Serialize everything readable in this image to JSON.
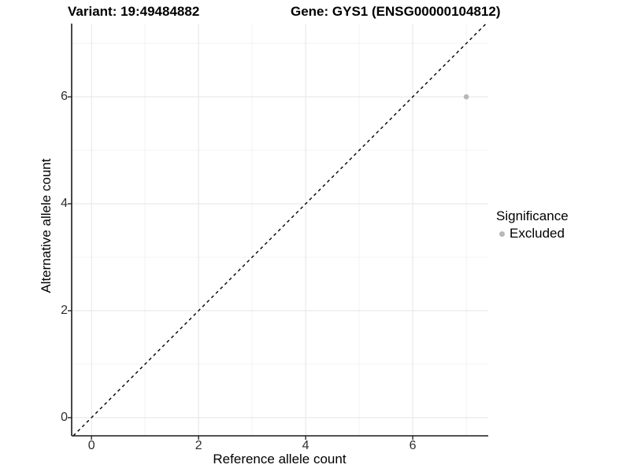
{
  "title": {
    "left": "Variant: 19:49484882",
    "right": "Gene: GYS1 (ENSG00000104812)"
  },
  "axes": {
    "x": {
      "label": "Reference allele count",
      "ticks": [
        "0",
        "2",
        "4",
        "6"
      ],
      "tick_values": [
        0,
        2,
        4,
        6
      ],
      "minor_tick_values": [
        1,
        3,
        5,
        7
      ]
    },
    "y": {
      "label": "Alternative allele count",
      "ticks": [
        "0",
        "2",
        "4",
        "6"
      ],
      "tick_values": [
        0,
        2,
        4,
        6
      ],
      "minor_tick_values": [
        1,
        3,
        5,
        7
      ]
    }
  },
  "legend": {
    "title": "Significance",
    "items": [
      {
        "label": "Excluded",
        "color": "#b8b8b8"
      }
    ]
  },
  "chart_data": {
    "type": "scatter",
    "title": "Variant: 19:49484882 | Gene: GYS1 (ENSG00000104812)",
    "xlabel": "Reference allele count",
    "ylabel": "Alternative allele count",
    "xlim": [
      -0.37,
      7.41
    ],
    "ylim": [
      -0.34,
      7.37
    ],
    "x_ticks": [
      0,
      2,
      4,
      6
    ],
    "y_ticks": [
      0,
      2,
      4,
      6
    ],
    "grid": "on",
    "legend_position": "right",
    "series": [
      {
        "name": "Excluded",
        "points": [
          {
            "x": 7,
            "y": 6
          }
        ]
      }
    ],
    "reference_line": {
      "type": "identity_y_equals_x",
      "style": "dashed",
      "color": "#000000"
    },
    "colors": {
      "Excluded": "#b8b8b8"
    }
  },
  "style": {
    "grid_major": "#e7e7e7",
    "grid_minor": "#f3f3f3",
    "axis_line": "#1a1a1a",
    "point_radius": 3.3
  }
}
